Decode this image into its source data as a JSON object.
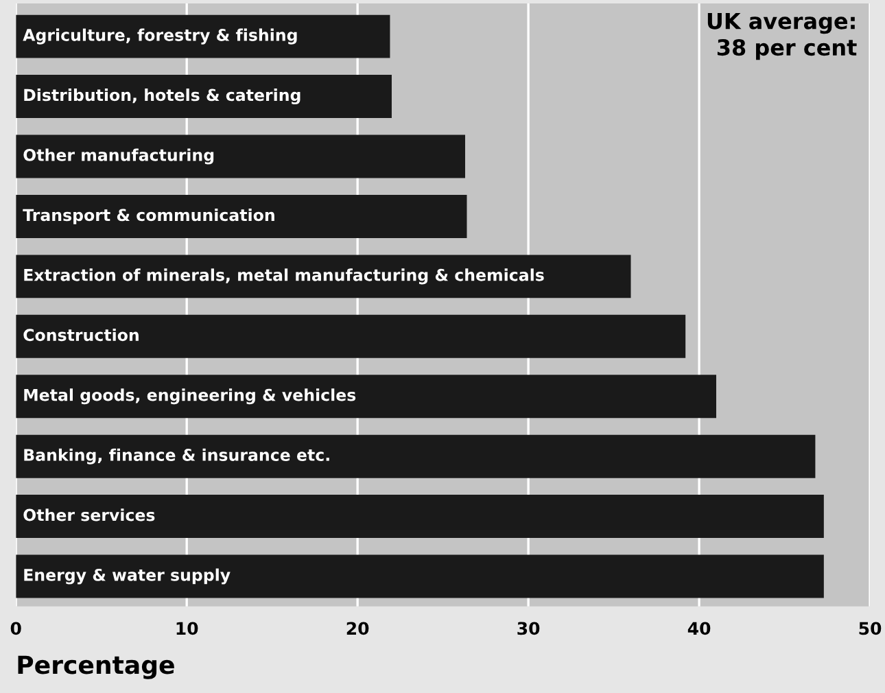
{
  "chart_data": {
    "type": "bar",
    "orientation": "horizontal",
    "xlabel": "Percentage",
    "categories": [
      "Agriculture, forestry & fishing",
      "Distribution, hotels & catering",
      "Other manufacturing",
      "Transport & communication",
      "Extraction of minerals, metal manufacturing & chemicals",
      "Construction",
      "Metal goods, engineering & vehicles",
      "Banking, finance & insurance etc.",
      "Other services",
      "Energy & water supply"
    ],
    "values": [
      21.9,
      22.0,
      26.3,
      26.4,
      36.0,
      39.2,
      41.0,
      46.8,
      47.3,
      47.3
    ],
    "color": "#1a1a1a",
    "xlim": [
      0,
      50
    ],
    "xticks": [
      0,
      10,
      20,
      30,
      40,
      50
    ],
    "grid": "x",
    "annotations": [
      "UK average:\n38 per cent"
    ]
  }
}
